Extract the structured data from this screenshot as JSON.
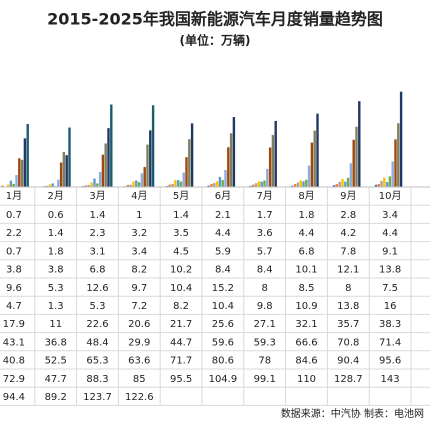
{
  "chart_data": {
    "type": "bar",
    "title": "2015-2025年我国新能源汽车月度销量趋势图",
    "subtitle": "(单位：万辆)",
    "source": "数据来源：中汽协  制表：电池网",
    "categories": [
      "1月",
      "2月",
      "3月",
      "4月",
      "5月",
      "6月",
      "7月",
      "8月",
      "9月",
      "10月"
    ],
    "ylim": [
      0,
      150
    ],
    "series": [
      {
        "color": "#4472c4",
        "values": [
          0.7,
          0.6,
          1.4,
          1.0,
          1.4,
          2.1,
          1.7,
          1.8,
          2.8,
          3.4
        ]
      },
      {
        "color": "#ed7d31",
        "values": [
          2.2,
          1.4,
          2.3,
          3.2,
          3.5,
          4.4,
          3.6,
          4.4,
          4.2,
          4.4
        ]
      },
      {
        "color": "#a5a5a5",
        "values": [
          0.7,
          1.8,
          3.1,
          3.4,
          4.5,
          5.9,
          5.7,
          6.8,
          7.8,
          9.1
        ]
      },
      {
        "color": "#ffc000",
        "values": [
          3.8,
          3.8,
          6.8,
          8.2,
          10.2,
          8.4,
          8.4,
          10.1,
          12.1,
          13.8
        ]
      },
      {
        "color": "#5b9bd5",
        "values": [
          9.6,
          5.3,
          12.6,
          9.7,
          10.4,
          15.2,
          8,
          8.5,
          8,
          7.5
        ]
      },
      {
        "color": "#70ad47",
        "values": [
          4.7,
          1.3,
          5.3,
          7.2,
          8.2,
          10.4,
          9.8,
          10.9,
          13.8,
          16
        ]
      },
      {
        "color": "#8faadc",
        "values": [
          17.9,
          11,
          22.6,
          20.6,
          21.7,
          25.6,
          27.1,
          32.1,
          35.7,
          38.3
        ]
      },
      {
        "color": "#9e480e",
        "values": [
          43.1,
          36.8,
          48.4,
          29.9,
          44.7,
          59.6,
          59.3,
          66.6,
          70.8,
          71.4
        ]
      },
      {
        "color": "#7f7f5f",
        "values": [
          40.8,
          52.5,
          65.3,
          63.6,
          71.7,
          80.6,
          78,
          84.6,
          90.4,
          95.6
        ]
      },
      {
        "color": "#1f3864",
        "values": [
          72.9,
          47.7,
          88.3,
          85,
          95.5,
          104.9,
          99.1,
          110,
          128.7,
          143
        ]
      },
      {
        "color": "#1e5b6e",
        "values": [
          94.4,
          89.2,
          123.7,
          122.6,
          null,
          null,
          null,
          null,
          null,
          null
        ]
      }
    ]
  }
}
